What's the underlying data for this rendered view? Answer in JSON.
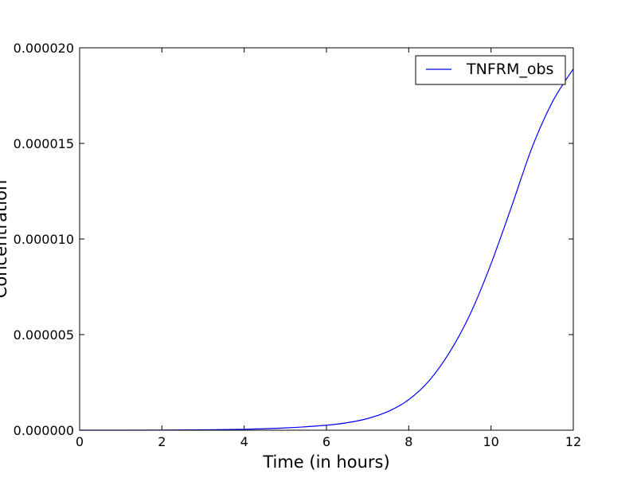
{
  "chart_data": {
    "type": "line",
    "title": "",
    "xlabel": "Time (in hours)",
    "ylabel": "Concentration",
    "xlim": [
      0,
      12
    ],
    "ylim": [
      0,
      2e-05
    ],
    "x_ticks": [
      "0",
      "2",
      "4",
      "6",
      "8",
      "10",
      "12"
    ],
    "y_ticks": [
      "0.000000",
      "0.000005",
      "0.000010",
      "0.000015",
      "0.000020"
    ],
    "grid": false,
    "legend_position": "top-right",
    "series": [
      {
        "name": "TNFRM_obs",
        "color": "#0000ff",
        "x": [
          0,
          1,
          2,
          3,
          4,
          5,
          6,
          6.5,
          7,
          7.5,
          8,
          8.5,
          9,
          9.5,
          10,
          10.5,
          11,
          11.5,
          12
        ],
        "y": [
          0,
          0,
          5e-09,
          2e-08,
          5e-08,
          1.2e-07,
          2.6e-07,
          3.9e-07,
          6.1e-07,
          9.8e-07,
          1.6e-06,
          2.6e-06,
          4.1e-06,
          6.1e-06,
          8.7e-06,
          1.17e-05,
          1.48e-05,
          1.72e-05,
          1.89e-05
        ]
      }
    ]
  }
}
